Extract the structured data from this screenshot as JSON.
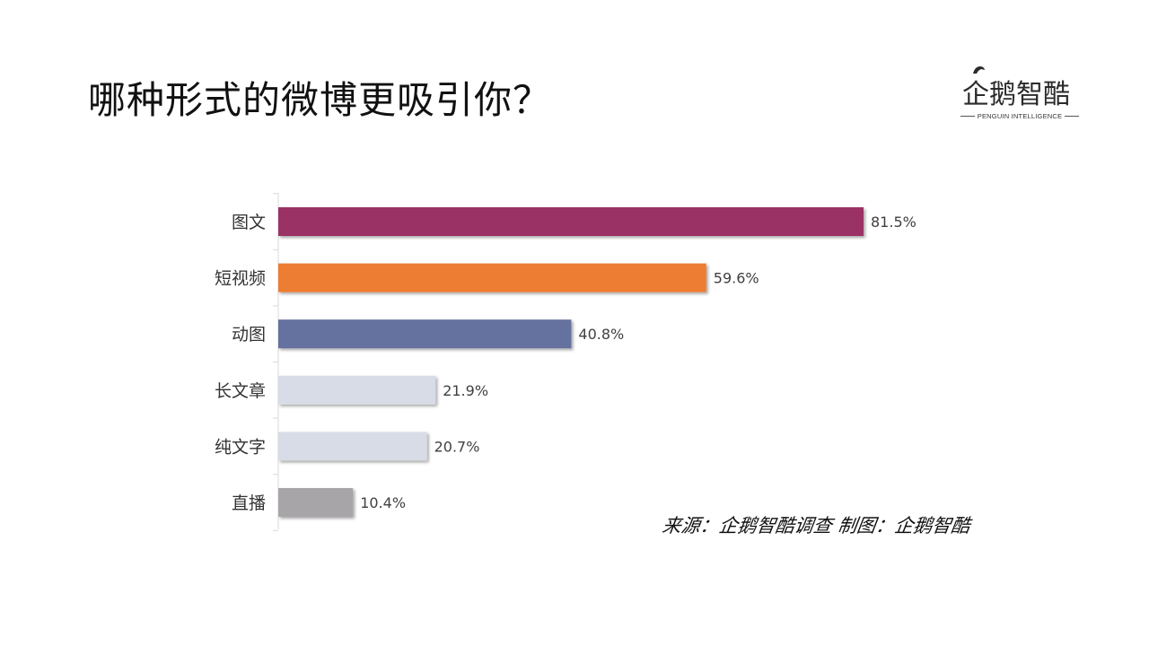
{
  "page": {
    "title": "哪种形式的微博更吸引你？",
    "source": "来源：企鹅智酷调查  制图：企鹅智酷"
  },
  "logo": {
    "name": "企鹅智酷",
    "tagline": "PENGUIN INTELLIGENCE"
  },
  "chart_data": {
    "type": "bar",
    "orientation": "horizontal",
    "categories": [
      "图文",
      "短视频",
      "动图",
      "长文章",
      "纯文字",
      "直播"
    ],
    "values": [
      81.5,
      59.6,
      40.8,
      21.9,
      20.7,
      10.4
    ],
    "value_labels": [
      "81.5%",
      "59.6%",
      "40.8%",
      "21.9%",
      "20.7%",
      "10.4%"
    ],
    "colors": [
      "#9b3366",
      "#ec7d32",
      "#65729f",
      "#d8dce6",
      "#d8dce6",
      "#a7a5a8"
    ],
    "unit": "%",
    "xlim": [
      0,
      100
    ],
    "grid": false,
    "legend": "none"
  }
}
